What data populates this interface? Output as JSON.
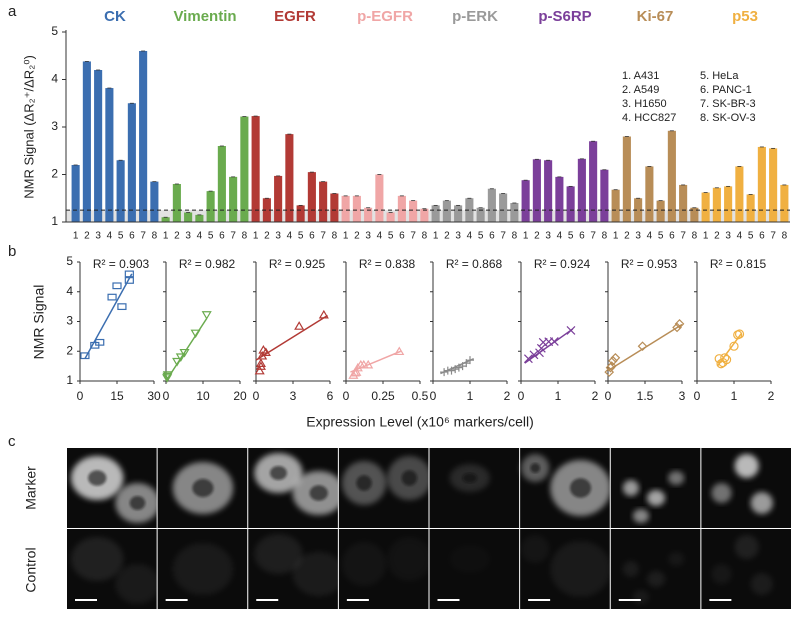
{
  "panel_labels": {
    "a": "a",
    "b": "b",
    "c": "c"
  },
  "shared_axes": {
    "xlabel": "Expression Level (x10⁶ markers/cell)",
    "ylabel": "NMR Signal"
  },
  "image_panel": {
    "row_labels": [
      "Marker",
      "Control"
    ]
  },
  "chart_data": [
    {
      "type": "bar",
      "ylabel": "NMR Signal (ΔR₂⁺/ΔR₂⁰)",
      "categories": [
        "1",
        "2",
        "3",
        "4",
        "5",
        "6",
        "7",
        "8"
      ],
      "ylim": [
        1,
        5
      ],
      "yticks": [
        1,
        2,
        3,
        4,
        5
      ],
      "threshold": 1.25,
      "legend_items": [
        "1. A431",
        "2. A549",
        "3. H1650",
        "4. HCC827",
        "5. HeLa",
        "6. PANC-1",
        "7. SK-BR-3",
        "8. SK-OV-3"
      ],
      "series": [
        {
          "name": "CK",
          "color": "#3b6eb0",
          "values": [
            2.2,
            4.38,
            4.2,
            3.82,
            2.3,
            3.5,
            4.6,
            1.85
          ]
        },
        {
          "name": "Vimentin",
          "color": "#6aab4e",
          "values": [
            1.1,
            1.8,
            1.2,
            1.15,
            1.65,
            2.6,
            1.95,
            3.22
          ]
        },
        {
          "name": "EGFR",
          "color": "#b23a35",
          "values": [
            3.23,
            1.5,
            1.97,
            2.85,
            1.35,
            2.05,
            1.85,
            1.6
          ]
        },
        {
          "name": "p-EGFR",
          "color": "#f0a6a6",
          "values": [
            1.55,
            1.55,
            1.3,
            2.0,
            1.2,
            1.55,
            1.45,
            1.28
          ]
        },
        {
          "name": "p-ERK",
          "color": "#9a9a9a",
          "values": [
            1.35,
            1.45,
            1.35,
            1.5,
            1.3,
            1.7,
            1.6,
            1.4
          ]
        },
        {
          "name": "p-S6RP",
          "color": "#7b3f9a",
          "values": [
            1.88,
            2.32,
            2.3,
            1.95,
            1.75,
            2.33,
            2.7,
            2.1
          ]
        },
        {
          "name": "Ki-67",
          "color": "#b88d57",
          "values": [
            1.68,
            2.8,
            1.5,
            2.17,
            1.45,
            2.92,
            1.78,
            1.3
          ]
        },
        {
          "name": "p53",
          "color": "#f0b041",
          "values": [
            1.62,
            1.72,
            1.75,
            2.17,
            1.58,
            2.58,
            2.55,
            1.78
          ]
        }
      ]
    },
    {
      "type": "scatter",
      "annotation": "R² = 0.903",
      "color": "#3b6eb0",
      "marker": "square",
      "xlim": [
        0,
        30
      ],
      "xticks": [
        0,
        15,
        30
      ],
      "ylim": [
        1,
        5
      ],
      "yticks": [
        1,
        2,
        3,
        4,
        5
      ],
      "x": [
        6,
        20,
        15,
        13,
        8,
        17,
        20,
        2
      ],
      "y": [
        2.2,
        4.38,
        4.2,
        3.82,
        2.3,
        3.5,
        4.6,
        1.85
      ],
      "fit": {
        "x": [
          2,
          21
        ],
        "y": [
          1.75,
          4.6
        ]
      }
    },
    {
      "type": "scatter",
      "annotation": "R² = 0.982",
      "color": "#6aab4e",
      "marker": "triangle-down",
      "xlim": [
        0,
        20
      ],
      "xticks": [
        0,
        10,
        20
      ],
      "ylim": [
        1,
        5
      ],
      "yticks": [
        1,
        2,
        3,
        4,
        5
      ],
      "x": [
        0.3,
        4,
        0.5,
        0.4,
        3,
        8,
        5,
        11
      ],
      "y": [
        1.1,
        1.8,
        1.2,
        1.15,
        1.65,
        2.6,
        1.95,
        3.22
      ],
      "fit": {
        "x": [
          0,
          11
        ],
        "y": [
          1.0,
          3.1
        ]
      }
    },
    {
      "type": "scatter",
      "annotation": "R² = 0.925",
      "color": "#b23a35",
      "marker": "triangle-up",
      "xlim": [
        0,
        6
      ],
      "xticks": [
        0,
        3,
        6
      ],
      "ylim": [
        1,
        5
      ],
      "yticks": [
        1,
        2,
        3,
        4,
        5
      ],
      "x": [
        5.5,
        0.4,
        0.8,
        3.5,
        0.3,
        0.6,
        0.5,
        0.4
      ],
      "y": [
        3.23,
        1.5,
        1.97,
        2.85,
        1.35,
        2.05,
        1.85,
        1.6
      ],
      "fit": {
        "x": [
          0,
          5.8
        ],
        "y": [
          1.7,
          3.2
        ]
      }
    },
    {
      "type": "scatter",
      "annotation": "R² = 0.838",
      "color": "#f0a6a6",
      "marker": "triangle-up",
      "xlim": [
        0,
        0.5
      ],
      "xticks": [
        0,
        0.25,
        0.5
      ],
      "ylim": [
        1,
        5
      ],
      "yticks": [
        1,
        2,
        3,
        4,
        5
      ],
      "x": [
        0.1,
        0.15,
        0.07,
        0.36,
        0.05,
        0.12,
        0.08,
        0.06
      ],
      "y": [
        1.55,
        1.55,
        1.3,
        2.0,
        1.2,
        1.55,
        1.45,
        1.28
      ],
      "fit": {
        "x": [
          0.03,
          0.37
        ],
        "y": [
          1.3,
          2.0
        ]
      }
    },
    {
      "type": "scatter",
      "annotation": "R² = 0.868",
      "color": "#8a8a8a",
      "marker": "plus",
      "xlim": [
        0,
        2
      ],
      "xticks": [
        0,
        1,
        2
      ],
      "ylim": [
        1,
        5
      ],
      "yticks": [
        1,
        2,
        3,
        4,
        5
      ],
      "x": [
        0.4,
        0.7,
        0.5,
        0.8,
        0.3,
        1.0,
        0.9,
        0.6
      ],
      "y": [
        1.35,
        1.45,
        1.35,
        1.5,
        1.3,
        1.7,
        1.6,
        1.4
      ],
      "fit": {
        "x": [
          0.2,
          1.1
        ],
        "y": [
          1.25,
          1.75
        ]
      }
    },
    {
      "type": "scatter",
      "annotation": "R² = 0.924",
      "color": "#7b3f9a",
      "marker": "cross",
      "xlim": [
        0,
        2
      ],
      "xticks": [
        0,
        1,
        2
      ],
      "ylim": [
        1,
        5
      ],
      "yticks": [
        1,
        2,
        3,
        4,
        5
      ],
      "x": [
        0.35,
        0.75,
        0.6,
        0.5,
        0.2,
        0.9,
        1.35,
        0.55
      ],
      "y": [
        1.88,
        2.32,
        2.3,
        1.95,
        1.75,
        2.33,
        2.7,
        2.1
      ],
      "fit": {
        "x": [
          0.1,
          1.4
        ],
        "y": [
          1.6,
          2.75
        ]
      }
    },
    {
      "type": "scatter",
      "annotation": "R² = 0.953",
      "color": "#b88d57",
      "marker": "diamond",
      "xlim": [
        0,
        3
      ],
      "xticks": [
        0,
        1.5,
        3
      ],
      "ylim": [
        1,
        5
      ],
      "yticks": [
        1,
        2,
        3,
        4,
        5
      ],
      "x": [
        0.2,
        2.8,
        0.15,
        1.4,
        0.1,
        2.9,
        0.3,
        0.05
      ],
      "y": [
        1.68,
        2.8,
        1.5,
        2.17,
        1.45,
        2.92,
        1.78,
        1.3
      ],
      "fit": {
        "x": [
          0,
          3
        ],
        "y": [
          1.35,
          2.9
        ]
      }
    },
    {
      "type": "scatter",
      "annotation": "R² = 0.815",
      "color": "#f0b041",
      "marker": "circle",
      "xlim": [
        0,
        2
      ],
      "xticks": [
        0,
        1,
        2
      ],
      "ylim": [
        1,
        5
      ],
      "yticks": [
        1,
        2,
        3,
        4,
        5
      ],
      "x": [
        0.7,
        0.8,
        0.6,
        1.0,
        0.65,
        1.15,
        1.1,
        0.75
      ],
      "y": [
        1.62,
        1.72,
        1.75,
        2.17,
        1.58,
        2.58,
        2.55,
        1.78
      ],
      "fit": {
        "x": [
          0.55,
          1.2
        ],
        "y": [
          1.5,
          2.6
        ]
      }
    }
  ]
}
